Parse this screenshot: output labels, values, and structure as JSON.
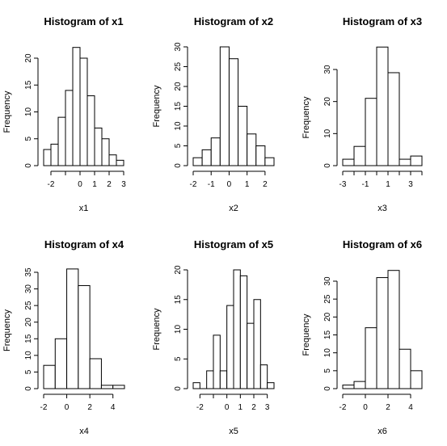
{
  "chart_data": [
    {
      "type": "histogram",
      "title": "Histogram of x1",
      "xlabel": "x1",
      "ylabel": "Frequency",
      "bins": [
        [
          -2.5,
          -2,
          3
        ],
        [
          -2,
          -1.5,
          4
        ],
        [
          -1.5,
          -1,
          9
        ],
        [
          -1,
          -0.5,
          14
        ],
        [
          -0.5,
          0,
          22
        ],
        [
          0,
          0.5,
          20
        ],
        [
          0.5,
          1,
          13
        ],
        [
          1,
          1.5,
          7
        ],
        [
          1.5,
          2,
          5
        ],
        [
          2,
          2.5,
          2
        ],
        [
          2.5,
          3,
          1
        ]
      ],
      "xticks": [
        -2,
        -1,
        0,
        1,
        2,
        3
      ],
      "xtick_labels": [
        "-2",
        "",
        "0",
        "1",
        "2",
        "3"
      ],
      "yticks": [
        0,
        5,
        10,
        15,
        20
      ],
      "grid": false
    },
    {
      "type": "histogram",
      "title": "Histogram of x2",
      "xlabel": "x2",
      "ylabel": "Frequency",
      "bins": [
        [
          -2,
          -1.5,
          2
        ],
        [
          -1.5,
          -1,
          4
        ],
        [
          -1,
          -0.5,
          7
        ],
        [
          -0.5,
          0,
          30
        ],
        [
          0,
          0.5,
          27
        ],
        [
          0.5,
          1,
          15
        ],
        [
          1,
          1.5,
          8
        ],
        [
          1.5,
          2,
          5
        ],
        [
          2,
          2.5,
          2
        ]
      ],
      "xticks": [
        -2,
        -1,
        0,
        1,
        2
      ],
      "xtick_labels": [
        "-2",
        "-1",
        "0",
        "1",
        "2"
      ],
      "yticks": [
        0,
        5,
        10,
        15,
        20,
        25,
        30
      ],
      "grid": false
    },
    {
      "type": "histogram",
      "title": "Histogram of x3",
      "xlabel": "x3",
      "ylabel": "Frequency",
      "bins": [
        [
          -3,
          -2,
          2
        ],
        [
          -2,
          -1,
          6
        ],
        [
          -1,
          0,
          21
        ],
        [
          0,
          1,
          37
        ],
        [
          1,
          2,
          29
        ],
        [
          2,
          3,
          2
        ],
        [
          3,
          4,
          3
        ]
      ],
      "xticks": [
        -3,
        -2,
        -1,
        0,
        1,
        2,
        3,
        4
      ],
      "xtick_labels": [
        "-3",
        "",
        "-1",
        "",
        "1",
        "",
        "3",
        ""
      ],
      "yticks": [
        0,
        10,
        20,
        30
      ],
      "grid": false
    },
    {
      "type": "histogram",
      "title": "Histogram of x4",
      "xlabel": "x4",
      "ylabel": "Frequency",
      "bins": [
        [
          -2,
          -1,
          7
        ],
        [
          -1,
          0,
          15
        ],
        [
          0,
          1,
          36
        ],
        [
          1,
          2,
          31
        ],
        [
          2,
          3,
          9
        ],
        [
          3,
          4,
          1
        ],
        [
          4,
          5,
          1
        ]
      ],
      "xticks": [
        -2,
        0,
        2,
        4
      ],
      "xtick_labels": [
        "-2",
        "0",
        "2",
        "4"
      ],
      "yticks": [
        0,
        5,
        10,
        15,
        20,
        25,
        30,
        35
      ],
      "grid": false
    },
    {
      "type": "histogram",
      "title": "Histogram of x5",
      "xlabel": "x5",
      "ylabel": "Frequency",
      "bins": [
        [
          -2.5,
          -2,
          1
        ],
        [
          -2,
          -1.5,
          0
        ],
        [
          -1.5,
          -1,
          3
        ],
        [
          -1,
          -0.5,
          9
        ],
        [
          -0.5,
          0,
          3
        ],
        [
          0,
          0.5,
          14
        ],
        [
          0.5,
          1,
          20
        ],
        [
          1,
          1.5,
          19
        ],
        [
          1.5,
          2,
          11
        ],
        [
          2,
          2.5,
          15
        ],
        [
          2.5,
          3,
          4
        ],
        [
          3,
          3.5,
          1
        ]
      ],
      "xticks": [
        -2,
        -1,
        0,
        1,
        2,
        3
      ],
      "xtick_labels": [
        "-2",
        "",
        "0",
        "1",
        "2",
        "3"
      ],
      "yticks": [
        0,
        5,
        10,
        15,
        20
      ],
      "grid": false
    },
    {
      "type": "histogram",
      "title": "Histogram of x6",
      "xlabel": "x6",
      "ylabel": "Frequency",
      "bins": [
        [
          -2,
          -1,
          1
        ],
        [
          -1,
          0,
          2
        ],
        [
          0,
          1,
          17
        ],
        [
          1,
          2,
          31
        ],
        [
          2,
          3,
          33
        ],
        [
          3,
          4,
          11
        ],
        [
          4,
          5,
          5
        ]
      ],
      "xticks": [
        -2,
        0,
        2,
        4
      ],
      "xtick_labels": [
        "-2",
        "0",
        "2",
        "4"
      ],
      "yticks": [
        0,
        5,
        10,
        15,
        20,
        25,
        30
      ],
      "grid": false
    }
  ]
}
